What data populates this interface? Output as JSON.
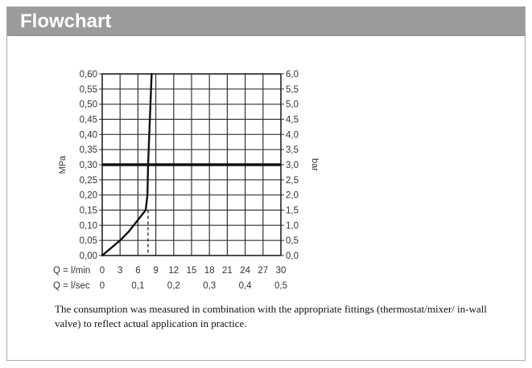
{
  "header": {
    "title": "Flowchart"
  },
  "caption": "The consumption was measured in combination with the appropriate fittings (thermostat/mixer/ in-wall valve) to reflect actual application in practice.",
  "chart_data": {
    "type": "line",
    "y_left": {
      "label": "MPa",
      "range": [
        0,
        0.6
      ],
      "ticks": [
        "0,00",
        "0,05",
        "0,10",
        "0,15",
        "0,20",
        "0,25",
        "0,30",
        "0,35",
        "0,40",
        "0,45",
        "0,50",
        "0,55",
        "0,60"
      ]
    },
    "y_right": {
      "label": "bar",
      "range": [
        0,
        6.0
      ],
      "ticks": [
        "0,0",
        "0,5",
        "1,0",
        "1,5",
        "2,0",
        "2,5",
        "3,0",
        "3,5",
        "4,0",
        "4,5",
        "5,0",
        "5,5",
        "6,0"
      ]
    },
    "x_primary": {
      "label": "Q = l/min",
      "range": [
        0,
        30
      ],
      "ticks": [
        "0",
        "3",
        "6",
        "9",
        "12",
        "15",
        "18",
        "21",
        "24",
        "27",
        "30"
      ]
    },
    "x_secondary": {
      "label": "Q = l/sec",
      "ticks": [
        "0",
        "0,1",
        "0,2",
        "0,3",
        "0,4",
        "0,5"
      ]
    },
    "grid": true,
    "series": [
      {
        "x": [
          0,
          1.5,
          3,
          4.5,
          5.5,
          6.5,
          7.3,
          7.6,
          7.7,
          8.0,
          8.3
        ],
        "y": [
          0,
          0.025,
          0.05,
          0.08,
          0.105,
          0.13,
          0.15,
          0.2,
          0.3,
          0.45,
          0.6
        ]
      }
    ],
    "reference_line": {
      "y": 0.3
    },
    "marker_line": {
      "x": 7.7,
      "y_to": 0.15,
      "style": "dashed"
    }
  }
}
